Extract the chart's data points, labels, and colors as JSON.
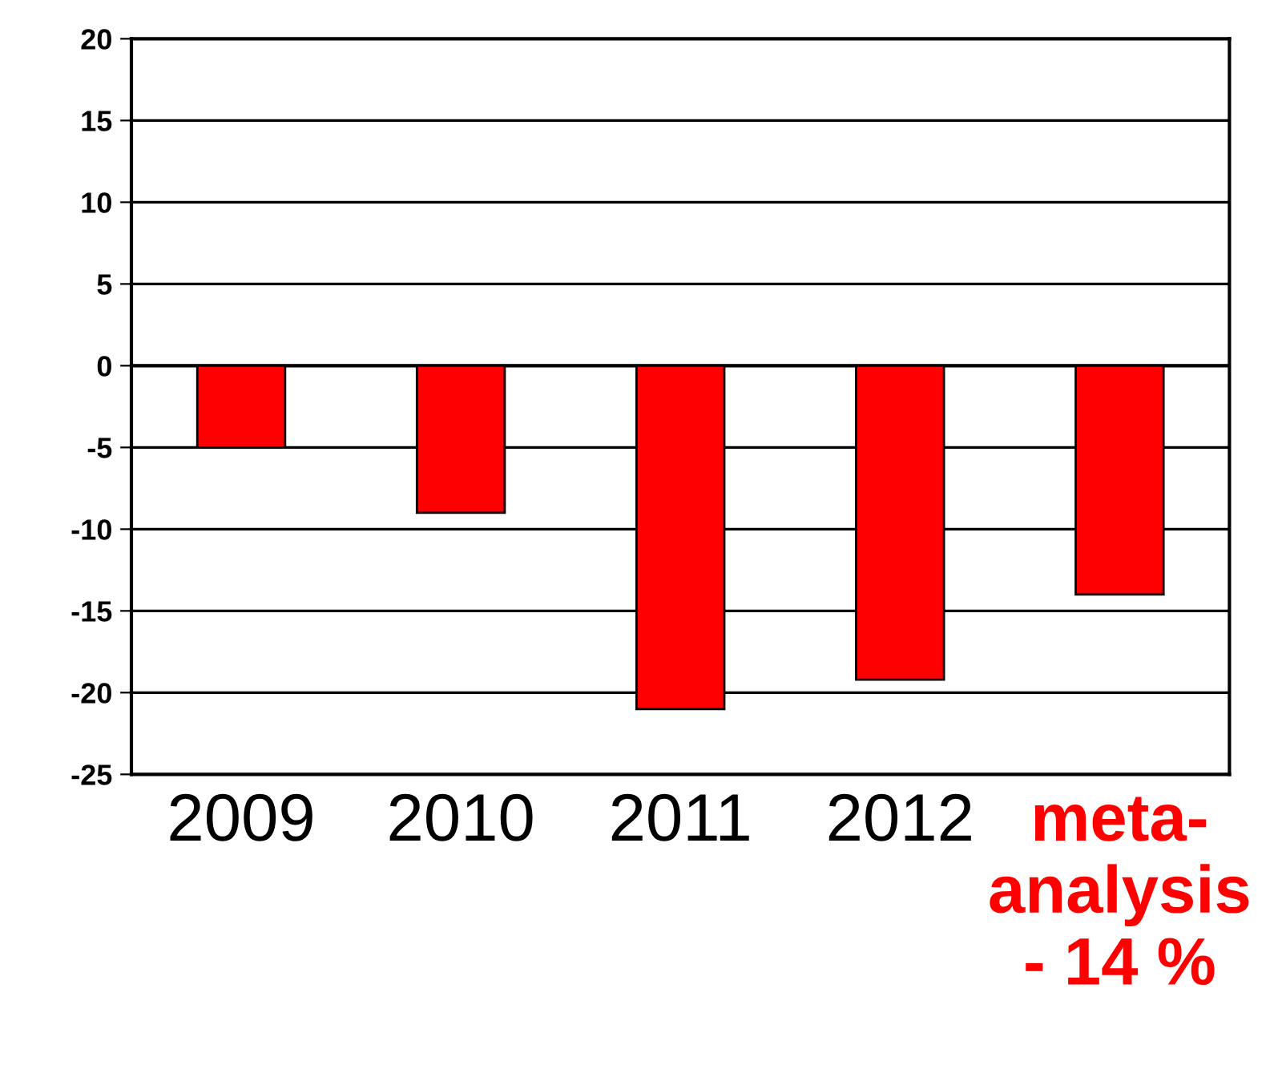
{
  "chart_data": {
    "type": "bar",
    "categories": [
      "2009",
      "2010",
      "2011",
      "2012",
      "meta-\nanalysis\n- 14 %"
    ],
    "values": [
      -5,
      -9,
      -21,
      -19.2,
      -14
    ],
    "color": "#ff0000",
    "ylim": [
      -25,
      20
    ],
    "yticks": [
      -25,
      -20,
      -15,
      -10,
      -5,
      0,
      5,
      10,
      15,
      20
    ],
    "grid": "y",
    "legend": false
  }
}
